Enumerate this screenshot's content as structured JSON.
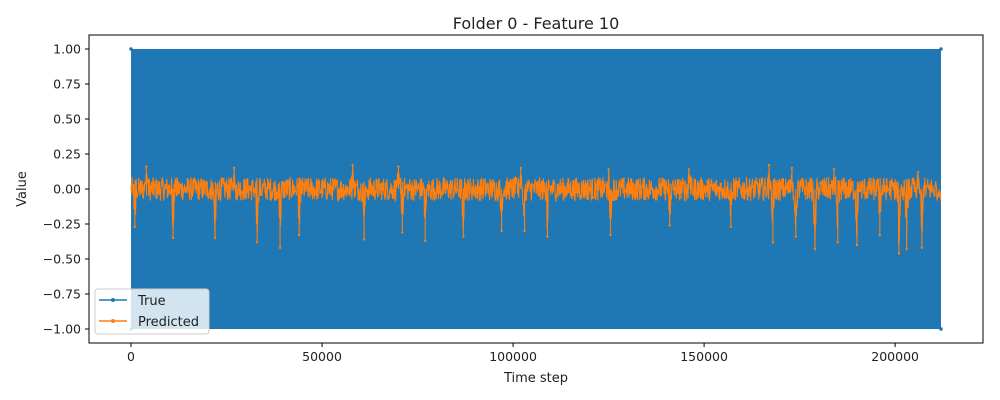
{
  "chart_data": {
    "type": "line",
    "title": "Folder 0 - Feature 10",
    "xlabel": "Time step",
    "ylabel": "Value",
    "xlim": [
      -11000,
      223000
    ],
    "ylim": [
      -1.1,
      1.1
    ],
    "xticks": [
      0,
      50000,
      100000,
      150000,
      200000
    ],
    "xtick_labels": [
      "0",
      "50000",
      "100000",
      "150000",
      "200000"
    ],
    "yticks": [
      1.0,
      0.75,
      0.5,
      0.25,
      0.0,
      -0.25,
      -0.5,
      -0.75,
      -1.0
    ],
    "ytick_labels": [
      "1.00",
      "0.75",
      "0.50",
      "0.25",
      "0.00",
      "−0.25",
      "−0.50",
      "−0.75",
      "−1.00"
    ],
    "grid": false,
    "legend_position": "lower-left",
    "series": [
      {
        "name": "True",
        "color": "#1f77b4",
        "marker": "dot",
        "x_range": [
          0,
          212000
        ],
        "values_range": [
          -1.0,
          1.0
        ],
        "pattern": "dense oscillation between -1.00 and 1.00 across the full x range"
      },
      {
        "name": "Predicted",
        "color": "#ff7f0e",
        "marker": "dot",
        "x_range": [
          0,
          212000
        ],
        "band": [
          -0.1,
          0.1
        ],
        "spikes": [
          {
            "x": 1000,
            "y": -0.27
          },
          {
            "x": 4000,
            "y": 0.16
          },
          {
            "x": 11000,
            "y": -0.35
          },
          {
            "x": 22000,
            "y": -0.35
          },
          {
            "x": 27000,
            "y": 0.15
          },
          {
            "x": 33000,
            "y": -0.38
          },
          {
            "x": 39000,
            "y": -0.42
          },
          {
            "x": 44000,
            "y": -0.33
          },
          {
            "x": 58000,
            "y": 0.17
          },
          {
            "x": 61000,
            "y": -0.36
          },
          {
            "x": 70000,
            "y": 0.16
          },
          {
            "x": 71000,
            "y": -0.31
          },
          {
            "x": 77000,
            "y": -0.37
          },
          {
            "x": 87000,
            "y": -0.34
          },
          {
            "x": 97000,
            "y": -0.3
          },
          {
            "x": 102000,
            "y": 0.15
          },
          {
            "x": 103000,
            "y": -0.3
          },
          {
            "x": 109000,
            "y": -0.34
          },
          {
            "x": 125000,
            "y": 0.14
          },
          {
            "x": 125500,
            "y": -0.33
          },
          {
            "x": 141000,
            "y": -0.26
          },
          {
            "x": 146000,
            "y": 0.14
          },
          {
            "x": 157000,
            "y": -0.27
          },
          {
            "x": 167000,
            "y": 0.17
          },
          {
            "x": 168000,
            "y": -0.38
          },
          {
            "x": 173000,
            "y": 0.15
          },
          {
            "x": 174000,
            "y": -0.34
          },
          {
            "x": 179000,
            "y": -0.43
          },
          {
            "x": 184000,
            "y": 0.14
          },
          {
            "x": 185000,
            "y": -0.38
          },
          {
            "x": 190000,
            "y": -0.4
          },
          {
            "x": 196000,
            "y": -0.33
          },
          {
            "x": 201000,
            "y": -0.46
          },
          {
            "x": 203000,
            "y": -0.43
          },
          {
            "x": 206000,
            "y": 0.12
          },
          {
            "x": 207000,
            "y": -0.42
          },
          {
            "x": 211500,
            "y": -0.05
          }
        ]
      }
    ]
  }
}
